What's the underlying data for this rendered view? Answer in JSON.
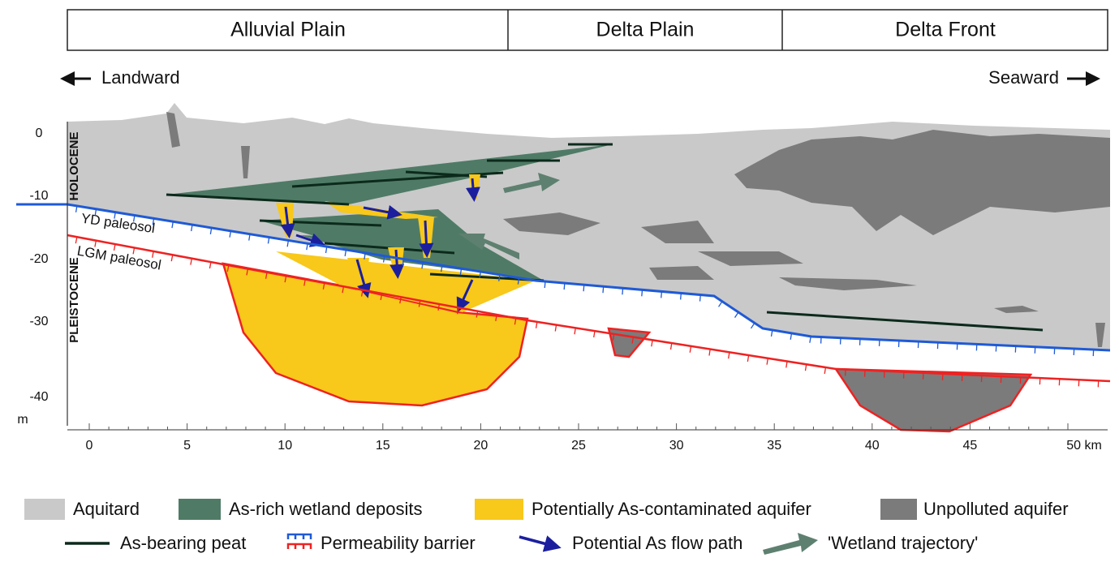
{
  "header": {
    "zones": [
      "Alluvial Plain",
      "Delta Plain",
      "Delta Front"
    ]
  },
  "directions": {
    "landward": "Landward",
    "seaward": "Seaward"
  },
  "y_axis": {
    "labels": [
      "0",
      "-10",
      "-20",
      "-30",
      "-40"
    ],
    "unit": "m"
  },
  "epochs": {
    "holocene": "HOLOCENE",
    "pleistocene": "PLEISTOCENE"
  },
  "surfaces": {
    "yd": "YD paleosol",
    "lgm": "LGM paleosol"
  },
  "x_axis": {
    "labels": [
      "0",
      "5",
      "10",
      "15",
      "20",
      "25",
      "30",
      "35",
      "40",
      "45",
      "50 km"
    ]
  },
  "legend": [
    {
      "label": "Aquitard"
    },
    {
      "label": "As-rich wetland deposits"
    },
    {
      "label": "Potentially As-contaminated aquifer"
    },
    {
      "label": "Unpolluted aquifer"
    },
    {
      "label": "As-bearing peat"
    },
    {
      "label": "Permeability barrier"
    },
    {
      "label": "Potential As flow path"
    },
    {
      "label": "'Wetland trajectory'"
    }
  ]
}
